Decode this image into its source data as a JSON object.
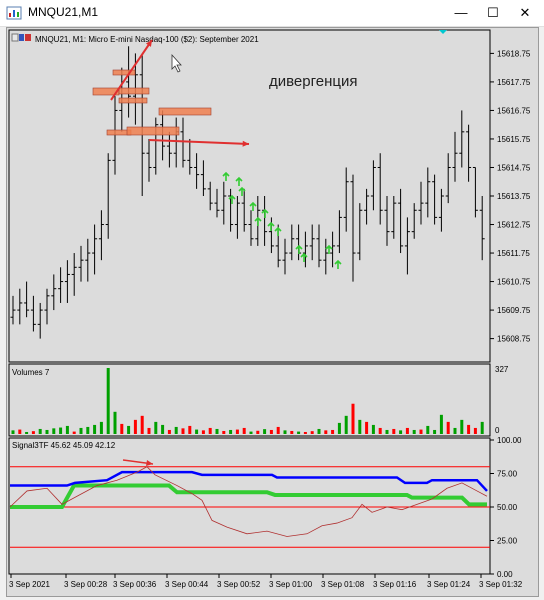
{
  "window": {
    "title": "MNQU21,M1",
    "buttons": [
      "—",
      "☐",
      "✕"
    ]
  },
  "main_chart": {
    "header": "MNQU21, M1:  Micro E-mini Nasdaq-100 ($2): September 2021",
    "annotation": "дивергенция",
    "price_ticks": [
      "15618.75",
      "15617.75",
      "15616.75",
      "15615.75",
      "15614.75",
      "15613.75",
      "15612.75",
      "15611.75",
      "15610.75",
      "15609.75",
      "15608.75"
    ]
  },
  "volumes": {
    "label": "Volumes 7",
    "ticks": [
      "327",
      "0"
    ]
  },
  "signal": {
    "label": "Signal3TF 45.62 45.09 42.12",
    "ticks": [
      "100.00",
      "75.00",
      "50.00",
      "25.00",
      "0.00"
    ]
  },
  "time_axis": [
    "3 Sep 2021",
    "3 Sep 00:28",
    "3 Sep 00:36",
    "3 Sep 00:44",
    "3 Sep 00:52",
    "3 Sep 01:00",
    "3 Sep 01:08",
    "3 Sep 01:16",
    "3 Sep 01:24",
    "3 Sep 01:32"
  ],
  "colors": {
    "bg": "#dcdcdc",
    "bull_vol": "#00a000",
    "bear_vol": "#ff0000",
    "blue_line": "#0000ff",
    "green_line": "#33cc33",
    "level_line": "#ff0000",
    "osc_line": "#b03030",
    "arrow_up": "#33cc33",
    "box_fill": "#f08050"
  },
  "chart_data": {
    "type": "bar",
    "title": "MNQU21, M1:  Micro E-mini Nasdaq-100 ($2): September 2021",
    "ohlc_price_range": [
      15608.0,
      15619.5
    ],
    "bars": [
      [
        15609.5,
        15610.25,
        15609.25,
        15609.75
      ],
      [
        15609.75,
        15610.5,
        15609.25,
        15610.0
      ],
      [
        15610.0,
        15610.75,
        15609.5,
        15609.75
      ],
      [
        15609.75,
        15610.25,
        15609.0,
        15609.25
      ],
      [
        15609.25,
        15610.0,
        15608.75,
        15609.75
      ],
      [
        15609.75,
        15610.5,
        15609.25,
        15610.25
      ],
      [
        15610.25,
        15611.0,
        15609.75,
        15610.5
      ],
      [
        15610.5,
        15611.25,
        15610.0,
        15610.75
      ],
      [
        15610.75,
        15611.5,
        15610.0,
        15611.0
      ],
      [
        15611.0,
        15611.75,
        15610.25,
        15611.25
      ],
      [
        15611.25,
        15612.0,
        15610.75,
        15611.5
      ],
      [
        15611.5,
        15612.25,
        15610.75,
        15611.75
      ],
      [
        15611.75,
        15612.75,
        15611.0,
        15612.25
      ],
      [
        15612.25,
        15613.25,
        15611.5,
        15612.75
      ],
      [
        15612.75,
        15615.25,
        15612.25,
        15615.0
      ],
      [
        15615.0,
        15617.25,
        15614.5,
        15616.75
      ],
      [
        15616.75,
        15618.25,
        15616.0,
        15617.75
      ],
      [
        15617.75,
        15619.0,
        15616.5,
        15617.25
      ],
      [
        15617.25,
        15618.75,
        15616.25,
        15618.0
      ],
      [
        15618.0,
        15618.75,
        15613.75,
        15615.25
      ],
      [
        15615.25,
        15615.75,
        15614.25,
        15614.75
      ],
      [
        15614.75,
        15616.5,
        15614.5,
        15616.25
      ],
      [
        15616.25,
        15616.75,
        15615.0,
        15615.5
      ],
      [
        15615.5,
        15616.0,
        15614.75,
        15615.25
      ],
      [
        15615.25,
        15616.5,
        15614.75,
        15616.0
      ],
      [
        15616.0,
        15616.5,
        15614.75,
        15615.0
      ],
      [
        15615.0,
        15615.75,
        15614.5,
        15614.75
      ],
      [
        15614.75,
        15615.25,
        15614.0,
        15614.5
      ],
      [
        15614.5,
        15615.0,
        15613.75,
        15614.0
      ],
      [
        15614.0,
        15614.25,
        15613.25,
        15613.5
      ],
      [
        15613.5,
        15614.0,
        15613.0,
        15613.25
      ],
      [
        15613.25,
        15614.25,
        15612.75,
        15613.75
      ],
      [
        15613.75,
        15614.0,
        15612.5,
        15612.75
      ],
      [
        15612.75,
        15613.75,
        15612.25,
        15613.5
      ],
      [
        15613.5,
        15614.0,
        15612.5,
        15612.75
      ],
      [
        15612.75,
        15613.25,
        15612.0,
        15612.25
      ],
      [
        15612.25,
        15613.75,
        15612.0,
        15613.25
      ],
      [
        15613.25,
        15613.75,
        15612.0,
        15612.5
      ],
      [
        15612.5,
        15613.0,
        15611.75,
        15612.0
      ],
      [
        15612.0,
        15612.75,
        15611.25,
        15611.5
      ],
      [
        15611.5,
        15612.25,
        15611.0,
        15611.75
      ],
      [
        15611.75,
        15612.75,
        15611.5,
        15612.25
      ],
      [
        15612.25,
        15612.75,
        15611.5,
        15611.75
      ],
      [
        15611.75,
        15612.5,
        15611.25,
        15612.0
      ],
      [
        15612.0,
        15612.75,
        15611.5,
        15612.25
      ],
      [
        15612.25,
        15612.75,
        15611.25,
        15611.5
      ],
      [
        15611.5,
        15612.25,
        15611.0,
        15611.75
      ],
      [
        15611.75,
        15612.5,
        15611.25,
        15612.0
      ],
      [
        15612.0,
        15613.25,
        15611.75,
        15613.0
      ],
      [
        15613.0,
        15614.75,
        15612.5,
        15614.25
      ],
      [
        15614.25,
        15614.5,
        15610.75,
        15611.75
      ],
      [
        15611.75,
        15613.5,
        15611.5,
        15613.25
      ],
      [
        15613.25,
        15614.0,
        15612.75,
        15613.75
      ],
      [
        15613.75,
        15615.0,
        15613.25,
        15614.75
      ],
      [
        15614.75,
        15615.25,
        15612.75,
        15613.25
      ],
      [
        15613.25,
        15613.75,
        15612.0,
        15612.5
      ],
      [
        15612.5,
        15613.75,
        15612.25,
        15613.5
      ],
      [
        15613.5,
        15614.0,
        15611.75,
        15612.0
      ],
      [
        15612.0,
        15613.0,
        15611.0,
        15612.5
      ],
      [
        15612.5,
        15613.5,
        15612.25,
        15613.25
      ],
      [
        15613.25,
        15614.25,
        15612.75,
        15613.5
      ],
      [
        15613.5,
        15614.75,
        15613.0,
        15614.25
      ],
      [
        15614.25,
        15614.5,
        15612.75,
        15613.0
      ],
      [
        15613.0,
        15614.0,
        15612.5,
        15613.75
      ],
      [
        15613.75,
        15615.25,
        15613.5,
        15614.75
      ],
      [
        15614.75,
        15616.0,
        15614.25,
        15615.25
      ],
      [
        15615.25,
        15616.75,
        15614.75,
        15616.0
      ],
      [
        15616.0,
        15616.25,
        15614.25,
        15614.75
      ],
      [
        15614.75,
        15614.75,
        15613.0,
        15613.25
      ],
      [
        15613.25,
        15613.75,
        15611.5,
        15612.25
      ]
    ],
    "volumes": [
      [
        18,
        1
      ],
      [
        22,
        0
      ],
      [
        10,
        1
      ],
      [
        14,
        0
      ],
      [
        25,
        1
      ],
      [
        20,
        1
      ],
      [
        28,
        1
      ],
      [
        32,
        1
      ],
      [
        40,
        1
      ],
      [
        12,
        0
      ],
      [
        30,
        1
      ],
      [
        35,
        1
      ],
      [
        45,
        1
      ],
      [
        60,
        1
      ],
      [
        327,
        1
      ],
      [
        110,
        1
      ],
      [
        50,
        0
      ],
      [
        40,
        1
      ],
      [
        70,
        0
      ],
      [
        90,
        0
      ],
      [
        30,
        0
      ],
      [
        60,
        1
      ],
      [
        45,
        1
      ],
      [
        20,
        0
      ],
      [
        35,
        1
      ],
      [
        28,
        0
      ],
      [
        40,
        0
      ],
      [
        22,
        1
      ],
      [
        18,
        0
      ],
      [
        30,
        0
      ],
      [
        25,
        1
      ],
      [
        15,
        0
      ],
      [
        20,
        1
      ],
      [
        22,
        0
      ],
      [
        30,
        0
      ],
      [
        12,
        1
      ],
      [
        16,
        0
      ],
      [
        24,
        1
      ],
      [
        20,
        0
      ],
      [
        35,
        0
      ],
      [
        18,
        1
      ],
      [
        15,
        0
      ],
      [
        12,
        1
      ],
      [
        10,
        0
      ],
      [
        14,
        0
      ],
      [
        25,
        1
      ],
      [
        18,
        0
      ],
      [
        20,
        0
      ],
      [
        55,
        1
      ],
      [
        90,
        1
      ],
      [
        150,
        0
      ],
      [
        70,
        1
      ],
      [
        60,
        0
      ],
      [
        45,
        1
      ],
      [
        30,
        0
      ],
      [
        20,
        1
      ],
      [
        25,
        0
      ],
      [
        18,
        1
      ],
      [
        30,
        0
      ],
      [
        20,
        1
      ],
      [
        22,
        0
      ],
      [
        40,
        1
      ],
      [
        20,
        1
      ],
      [
        95,
        1
      ],
      [
        60,
        0
      ],
      [
        30,
        1
      ],
      [
        70,
        1
      ],
      [
        45,
        0
      ],
      [
        30,
        0
      ],
      [
        60,
        1
      ]
    ]
  }
}
